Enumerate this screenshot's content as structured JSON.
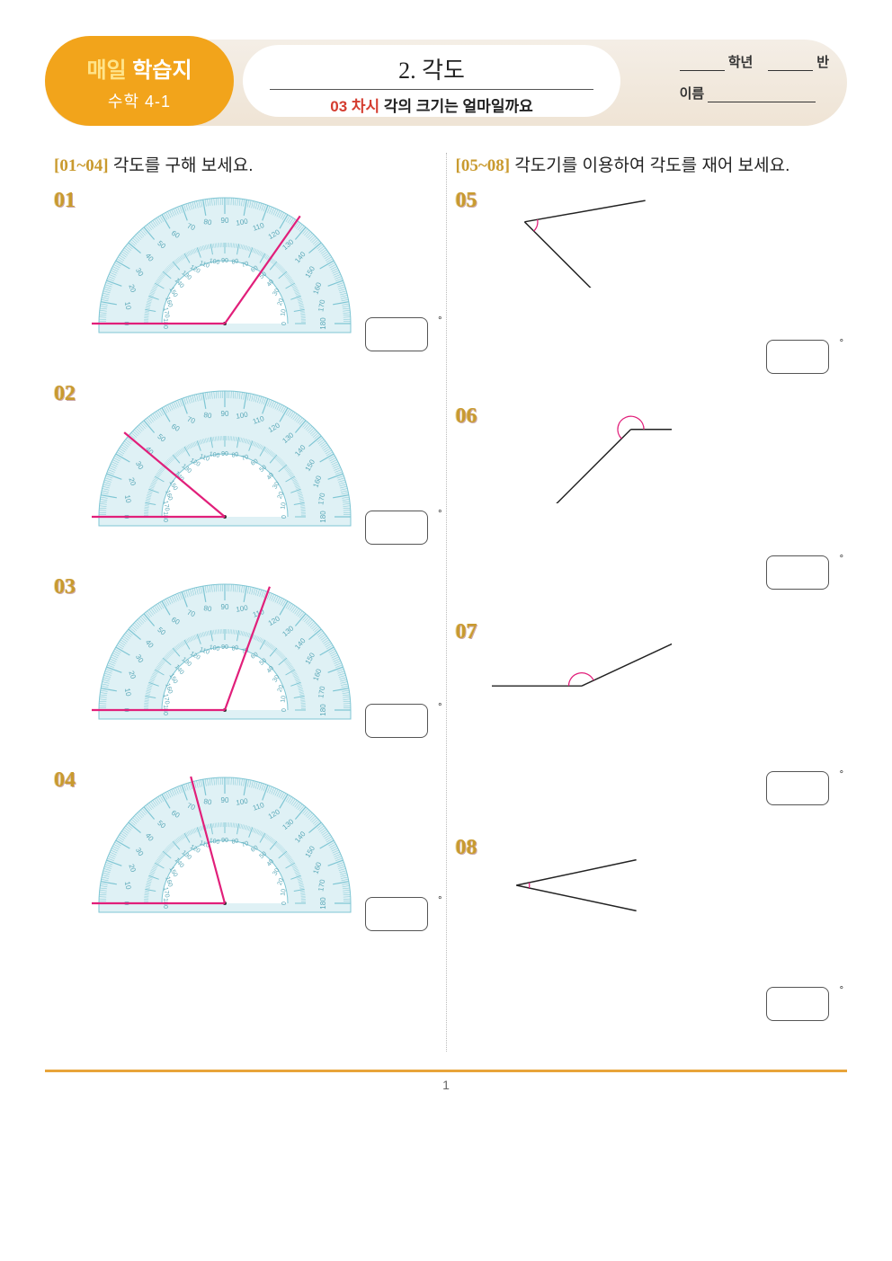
{
  "header": {
    "badge_line1_a": "매일",
    "badge_line1_b": " 학습지",
    "badge_line2": "수학 4-1",
    "unit_title": "2. 각도",
    "lesson_prefix": "03 차시",
    "lesson_title": " 각의 크기는 얼마일까요",
    "grade_label": "학년",
    "class_label": "반",
    "name_label": "이름"
  },
  "left": {
    "range": "[01~04]",
    "instruction": " 각도를 구해 보세요.",
    "problems": [
      {
        "num": "01",
        "ray_inner_deg": 125,
        "protractor": {
          "body": "#dff1f5",
          "tick": "#7fc6d4",
          "text": "#5aa8b8"
        }
      },
      {
        "num": "02",
        "ray_inner_deg": 40,
        "protractor": {
          "body": "#dff1f5",
          "tick": "#7fc6d4",
          "text": "#5aa8b8"
        }
      },
      {
        "num": "03",
        "ray_inner_deg": 110,
        "protractor": {
          "body": "#dff1f5",
          "tick": "#7fc6d4",
          "text": "#5aa8b8"
        }
      },
      {
        "num": "04",
        "ray_inner_deg": 75,
        "protractor": {
          "body": "#dff1f5",
          "tick": "#7fc6d4",
          "text": "#5aa8b8"
        }
      }
    ],
    "ray_color": "#e11f7a",
    "tick_values": [
      0,
      10,
      20,
      30,
      40,
      50,
      60,
      70,
      80,
      90,
      100,
      110,
      120,
      130,
      140,
      150,
      160,
      170,
      180
    ]
  },
  "right": {
    "range": "[05~08]",
    "instruction": " 각도기를 이용하여 각도를 재어 보세요.",
    "problems": [
      {
        "num": "05",
        "arm1_deg": 10,
        "arm2_deg": -45,
        "arc_color": "#e11f7a"
      },
      {
        "num": "06",
        "arm1_deg": 0,
        "arm2_deg": 225,
        "vertex_at": "right",
        "arc_color": "#e11f7a"
      },
      {
        "num": "07",
        "arm1_deg": 180,
        "arm2_deg": 25,
        "arc_color": "#e11f7a"
      },
      {
        "num": "08",
        "arm1_deg": 12,
        "arm2_deg": -12,
        "arc_color": "#e11f7a"
      }
    ],
    "line_color": "#222"
  },
  "degree_symbol": "°",
  "page_number": "1"
}
